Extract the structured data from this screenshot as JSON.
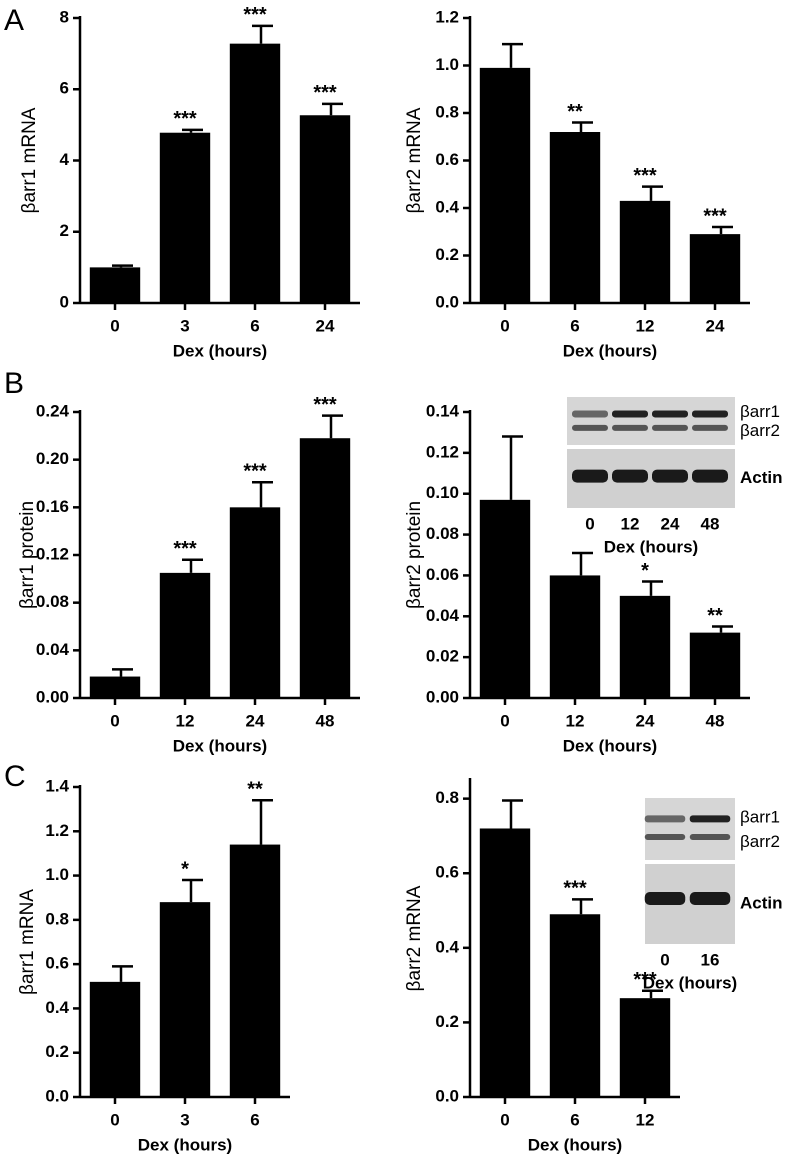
{
  "panel_labels": [
    "A",
    "B",
    "C"
  ],
  "chart_data": [
    {
      "type": "bar",
      "ylabel": "βarr1 mRNA",
      "xlabel": "Dex (hours)",
      "color": "#000000",
      "categories": [
        "0",
        "3",
        "6",
        "24"
      ],
      "values": [
        1.0,
        4.78,
        7.28,
        5.27
      ],
      "errors": [
        0.05,
        0.08,
        0.5,
        0.32
      ],
      "annotations": [
        null,
        "***",
        "***",
        "***"
      ],
      "ylim": [
        0,
        8
      ],
      "yticks": [
        0,
        2,
        4,
        6,
        8
      ]
    },
    {
      "type": "bar",
      "ylabel": "βarr2 mRNA",
      "xlabel": "Dex (hours)",
      "color": "#000000",
      "categories": [
        "0",
        "6",
        "12",
        "24"
      ],
      "values": [
        0.99,
        0.72,
        0.43,
        0.29
      ],
      "errors": [
        0.1,
        0.04,
        0.06,
        0.03
      ],
      "annotations": [
        null,
        "**",
        "***",
        "***"
      ],
      "ylim": [
        0,
        1.2
      ],
      "yticks": [
        {
          "value": 0,
          "label": "0.0"
        },
        0.2,
        0.4,
        0.6,
        0.8,
        {
          "value": 1,
          "label": "1.0"
        },
        1.2
      ]
    },
    {
      "type": "bar",
      "ylabel": "βarr1 protein",
      "xlabel": "Dex (hours)",
      "color": "#000000",
      "categories": [
        "0",
        "12",
        "24",
        "48"
      ],
      "values": [
        0.018,
        0.105,
        0.16,
        0.218
      ],
      "errors": [
        0.006,
        0.011,
        0.021,
        0.019
      ],
      "annotations": [
        null,
        "***",
        "***",
        "***"
      ],
      "ylim": [
        0,
        0.24
      ],
      "yticks": [
        {
          "value": 0,
          "label": "0.00"
        },
        0.04,
        0.08,
        0.12,
        0.16,
        {
          "value": 0.2,
          "label": "0.20"
        },
        0.24
      ]
    },
    {
      "type": "bar",
      "ylabel": "βarr2 protein",
      "xlabel": "Dex (hours)",
      "color": "#000000",
      "categories": [
        "0",
        "12",
        "24",
        "48"
      ],
      "values": [
        0.097,
        0.06,
        0.05,
        0.032
      ],
      "errors": [
        0.031,
        0.011,
        0.007,
        0.003
      ],
      "annotations": [
        null,
        null,
        "*",
        "**"
      ],
      "ylim": [
        0,
        0.14
      ],
      "yticks": [
        {
          "value": 0,
          "label": "0.00"
        },
        0.02,
        0.04,
        0.06,
        0.08,
        {
          "value": 0.1,
          "label": "0.10"
        },
        0.12,
        0.14
      ],
      "inset": {
        "rows": [
          "βarr1",
          "βarr2",
          "Actin"
        ],
        "lanes": [
          "0",
          "12",
          "24",
          "48"
        ],
        "xlabel": "Dex (hours)"
      }
    },
    {
      "type": "bar",
      "ylabel": "βarr1 mRNA",
      "xlabel": "Dex (hours)",
      "color": "#000000",
      "categories": [
        "0",
        "3",
        "6"
      ],
      "values": [
        0.52,
        0.88,
        1.14
      ],
      "errors": [
        0.07,
        0.1,
        0.2
      ],
      "annotations": [
        null,
        "*",
        "**"
      ],
      "ylim": [
        0,
        1.4
      ],
      "yticks": [
        {
          "value": 0,
          "label": "0.0"
        },
        0.2,
        0.4,
        0.6,
        0.8,
        {
          "value": 1,
          "label": "1.0"
        },
        1.2,
        1.4
      ]
    },
    {
      "type": "bar",
      "ylabel": "βarr2 mRNA",
      "xlabel": "Dex (hours)",
      "color": "#000000",
      "categories": [
        "0",
        "6",
        "12"
      ],
      "values": [
        0.72,
        0.49,
        0.265
      ],
      "errors": [
        0.075,
        0.04,
        0.02
      ],
      "annotations": [
        null,
        "***",
        "***"
      ],
      "ylim": [
        0,
        0.85
      ],
      "yticks": [
        {
          "value": 0,
          "label": "0.0"
        },
        0.2,
        0.4,
        0.6,
        0.8
      ],
      "inset": {
        "rows": [
          "βarr1",
          "βarr2",
          "Actin"
        ],
        "lanes": [
          "0",
          "16"
        ],
        "xlabel": "Dex (hours)"
      }
    }
  ]
}
